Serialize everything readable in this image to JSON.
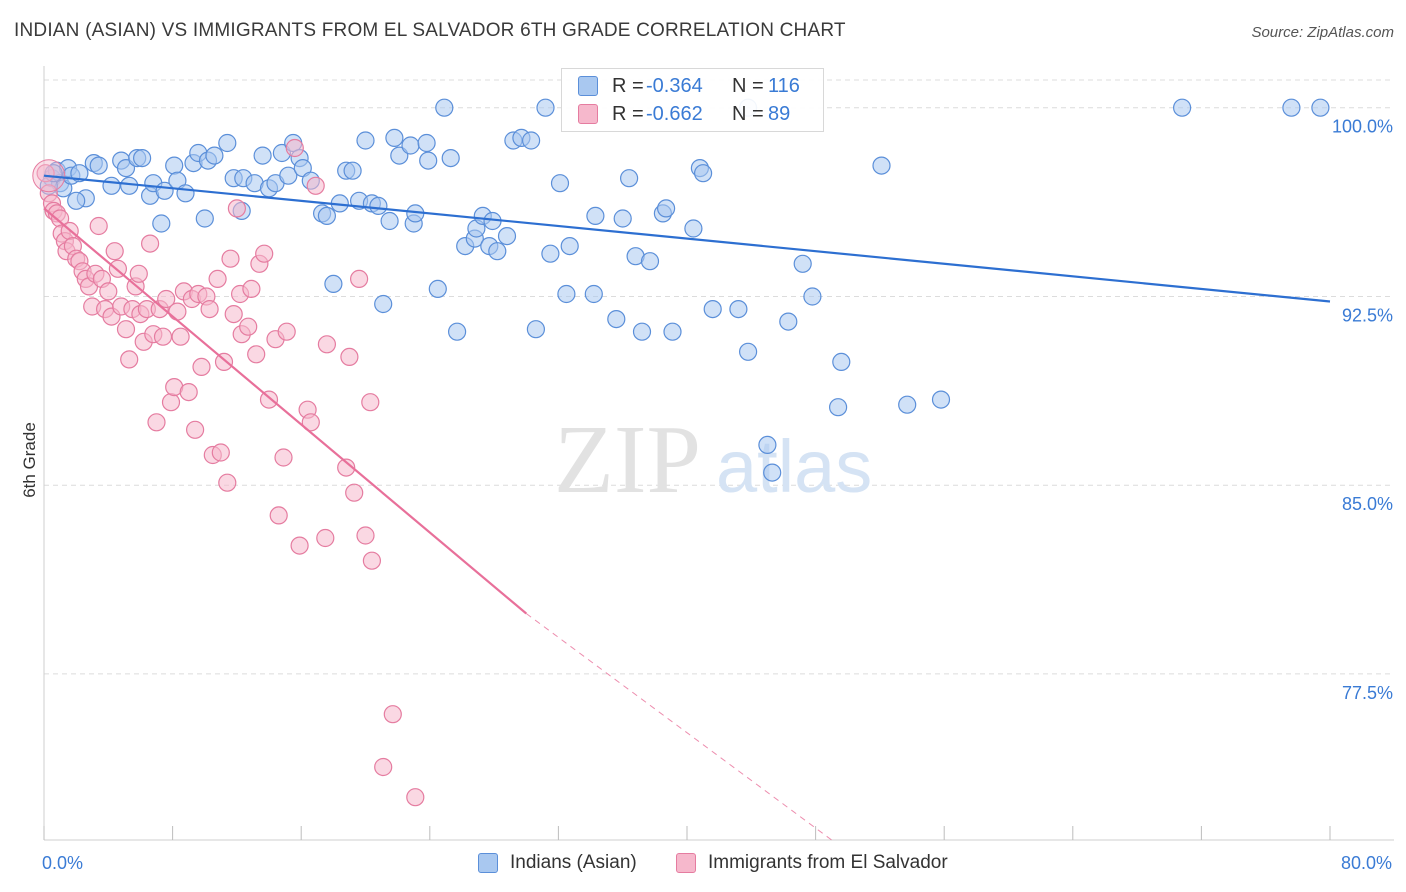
{
  "header": {
    "title": "INDIAN (ASIAN) VS IMMIGRANTS FROM EL SALVADOR 6TH GRADE CORRELATION CHART",
    "source": "Source: ZipAtlas.com"
  },
  "watermark": {
    "zip": "ZIP",
    "atlas": "atlas"
  },
  "legend_top": {
    "rows": [
      {
        "r_label": "R =",
        "r_value": "-0.364",
        "n_label": "N =",
        "n_value": "116"
      },
      {
        "r_label": "R =",
        "r_value": "-0.662",
        "n_label": "N =",
        "n_value": "89"
      }
    ]
  },
  "legend_bottom": {
    "items": [
      "Indians (Asian)",
      "Immigrants from El Salvador"
    ]
  },
  "colors": {
    "blue_fill": "#a9c8f0",
    "blue_stroke": "#5b8fd9",
    "blue_line": "#2d6fd1",
    "pink_fill": "#f6b8cc",
    "pink_stroke": "#e57ca0",
    "pink_line": "#e8709a",
    "grid": "#dcdcdc",
    "tick_label": "#3a7bd5"
  },
  "chart_data": {
    "type": "scatter",
    "title": "INDIAN (ASIAN) VS IMMIGRANTS FROM EL SALVADOR 6TH GRADE CORRELATION CHART",
    "xlabel": "",
    "ylabel": "6th Grade",
    "xlim": [
      0,
      80
    ],
    "ylim": [
      70.9,
      101.5
    ],
    "x_tick_labels": [
      "0.0%",
      "80.0%"
    ],
    "y_ticks": [
      77.5,
      85.0,
      92.5,
      100.0
    ],
    "y_tick_labels": [
      "77.5%",
      "85.0%",
      "92.5%",
      "100.0%"
    ],
    "grid": true,
    "legend_placement": "top-center",
    "series": [
      {
        "name": "Indians (Asian)",
        "color": "#a9c8f0",
        "trend": {
          "x": [
            0,
            80
          ],
          "y": [
            97.3,
            92.3
          ],
          "style": "solid"
        },
        "points": [
          [
            0.5,
            97.2
          ],
          [
            0.8,
            97.5
          ],
          [
            1.0,
            97.0
          ],
          [
            1.2,
            96.8
          ],
          [
            1.5,
            97.6
          ],
          [
            1.7,
            97.3
          ],
          [
            2.2,
            97.4
          ],
          [
            2.6,
            96.4
          ],
          [
            3.1,
            97.8
          ],
          [
            3.4,
            97.7
          ],
          [
            4.2,
            96.9
          ],
          [
            4.8,
            97.9
          ],
          [
            5.1,
            97.6
          ],
          [
            5.3,
            96.9
          ],
          [
            5.8,
            98.0
          ],
          [
            6.1,
            98.0
          ],
          [
            6.6,
            96.5
          ],
          [
            6.8,
            97.0
          ],
          [
            7.3,
            95.4
          ],
          [
            7.5,
            96.7
          ],
          [
            8.1,
            97.7
          ],
          [
            8.3,
            97.1
          ],
          [
            8.8,
            96.6
          ],
          [
            9.3,
            97.8
          ],
          [
            9.6,
            98.2
          ],
          [
            10.0,
            95.6
          ],
          [
            10.2,
            97.9
          ],
          [
            10.6,
            98.1
          ],
          [
            11.4,
            98.6
          ],
          [
            11.8,
            97.2
          ],
          [
            12.3,
            95.9
          ],
          [
            12.4,
            97.2
          ],
          [
            13.1,
            97.0
          ],
          [
            13.6,
            98.1
          ],
          [
            14.0,
            96.8
          ],
          [
            14.4,
            97.0
          ],
          [
            14.8,
            98.2
          ],
          [
            15.2,
            97.3
          ],
          [
            15.5,
            98.6
          ],
          [
            15.9,
            98.0
          ],
          [
            16.1,
            97.6
          ],
          [
            16.6,
            97.1
          ],
          [
            17.3,
            95.8
          ],
          [
            17.6,
            95.7
          ],
          [
            18.0,
            93.0
          ],
          [
            18.4,
            96.2
          ],
          [
            18.8,
            97.5
          ],
          [
            19.2,
            97.5
          ],
          [
            19.6,
            96.3
          ],
          [
            20.0,
            98.7
          ],
          [
            20.4,
            96.2
          ],
          [
            20.8,
            96.1
          ],
          [
            21.1,
            92.2
          ],
          [
            21.5,
            95.5
          ],
          [
            21.8,
            98.8
          ],
          [
            22.1,
            98.1
          ],
          [
            22.8,
            98.5
          ],
          [
            23.0,
            95.4
          ],
          [
            23.1,
            95.8
          ],
          [
            23.8,
            98.6
          ],
          [
            23.9,
            97.9
          ],
          [
            24.5,
            92.8
          ],
          [
            25.3,
            98.0
          ],
          [
            25.7,
            91.1
          ],
          [
            26.2,
            94.5
          ],
          [
            26.8,
            94.8
          ],
          [
            26.9,
            95.2
          ],
          [
            27.3,
            95.7
          ],
          [
            27.7,
            94.5
          ],
          [
            27.9,
            95.5
          ],
          [
            28.2,
            94.3
          ],
          [
            28.8,
            94.9
          ],
          [
            29.2,
            98.7
          ],
          [
            29.7,
            98.8
          ],
          [
            30.3,
            98.7
          ],
          [
            30.6,
            91.2
          ],
          [
            31.2,
            100.0
          ],
          [
            31.5,
            94.2
          ],
          [
            32.1,
            97.0
          ],
          [
            32.5,
            92.6
          ],
          [
            32.7,
            94.5
          ],
          [
            34.2,
            92.6
          ],
          [
            34.3,
            95.7
          ],
          [
            35.6,
            91.6
          ],
          [
            36.0,
            95.6
          ],
          [
            36.4,
            97.2
          ],
          [
            36.8,
            94.1
          ],
          [
            37.2,
            91.1
          ],
          [
            37.7,
            93.9
          ],
          [
            38.5,
            95.8
          ],
          [
            38.7,
            96.0
          ],
          [
            39.1,
            91.1
          ],
          [
            40.4,
            95.2
          ],
          [
            40.8,
            97.6
          ],
          [
            41.0,
            97.4
          ],
          [
            41.6,
            92.0
          ],
          [
            43.2,
            92.0
          ],
          [
            43.8,
            90.3
          ],
          [
            45.0,
            86.6
          ],
          [
            45.3,
            85.5
          ],
          [
            46.3,
            91.5
          ],
          [
            47.2,
            93.8
          ],
          [
            47.8,
            92.5
          ],
          [
            49.4,
            88.1
          ],
          [
            49.6,
            89.9
          ],
          [
            52.1,
            97.7
          ],
          [
            53.7,
            88.2
          ],
          [
            55.8,
            88.4
          ],
          [
            70.8,
            100.0
          ],
          [
            77.6,
            100.0
          ],
          [
            79.4,
            100.0
          ],
          [
            0.3,
            96.9
          ],
          [
            2.0,
            96.3
          ],
          [
            24.9,
            100.0
          ],
          [
            43.8,
            100.0
          ],
          [
            0.6,
            97.4
          ]
        ]
      },
      {
        "name": "Immigrants from El Salvador",
        "color": "#f6b8cc",
        "trend": {
          "x": [
            0,
            30
          ],
          "y": [
            96.0,
            79.9
          ],
          "style": "solid",
          "extended_x": [
            30,
            49.0
          ],
          "extended_y": [
            79.9,
            70.9
          ],
          "extended_style": "dashed"
        },
        "points": [
          [
            0.1,
            97.4
          ],
          [
            0.3,
            96.6
          ],
          [
            0.5,
            96.2
          ],
          [
            0.6,
            95.9
          ],
          [
            0.8,
            95.8
          ],
          [
            1.0,
            95.6
          ],
          [
            1.1,
            95.0
          ],
          [
            1.3,
            94.7
          ],
          [
            1.4,
            94.3
          ],
          [
            1.6,
            95.1
          ],
          [
            1.8,
            94.5
          ],
          [
            2.0,
            94.0
          ],
          [
            2.2,
            93.9
          ],
          [
            2.4,
            93.5
          ],
          [
            2.6,
            93.2
          ],
          [
            2.8,
            92.9
          ],
          [
            3.0,
            92.1
          ],
          [
            3.2,
            93.4
          ],
          [
            3.4,
            95.3
          ],
          [
            3.6,
            93.2
          ],
          [
            3.8,
            92.0
          ],
          [
            4.0,
            92.7
          ],
          [
            4.2,
            91.7
          ],
          [
            4.4,
            94.3
          ],
          [
            4.6,
            93.6
          ],
          [
            4.8,
            92.1
          ],
          [
            5.1,
            91.2
          ],
          [
            5.3,
            90.0
          ],
          [
            5.5,
            92.0
          ],
          [
            5.7,
            92.9
          ],
          [
            5.9,
            93.4
          ],
          [
            6.0,
            91.8
          ],
          [
            6.2,
            90.7
          ],
          [
            6.4,
            92.0
          ],
          [
            6.6,
            94.6
          ],
          [
            6.8,
            91.0
          ],
          [
            7.0,
            87.5
          ],
          [
            7.2,
            92.0
          ],
          [
            7.4,
            90.9
          ],
          [
            7.6,
            92.4
          ],
          [
            7.9,
            88.3
          ],
          [
            8.1,
            88.9
          ],
          [
            8.3,
            91.9
          ],
          [
            8.5,
            90.9
          ],
          [
            8.7,
            92.7
          ],
          [
            9.0,
            88.7
          ],
          [
            9.2,
            92.4
          ],
          [
            9.4,
            87.2
          ],
          [
            9.6,
            92.6
          ],
          [
            9.8,
            89.7
          ],
          [
            10.1,
            92.5
          ],
          [
            10.3,
            92.0
          ],
          [
            10.5,
            86.2
          ],
          [
            10.8,
            93.2
          ],
          [
            11.0,
            86.3
          ],
          [
            11.2,
            89.9
          ],
          [
            11.4,
            85.1
          ],
          [
            11.6,
            94.0
          ],
          [
            11.8,
            91.8
          ],
          [
            12.0,
            96.0
          ],
          [
            12.2,
            92.6
          ],
          [
            12.3,
            91.0
          ],
          [
            12.7,
            91.3
          ],
          [
            12.9,
            92.8
          ],
          [
            13.2,
            90.2
          ],
          [
            13.4,
            93.8
          ],
          [
            13.7,
            94.2
          ],
          [
            14.0,
            88.4
          ],
          [
            14.4,
            90.8
          ],
          [
            14.6,
            83.8
          ],
          [
            14.9,
            86.1
          ],
          [
            15.1,
            91.1
          ],
          [
            15.6,
            98.4
          ],
          [
            15.9,
            82.6
          ],
          [
            16.4,
            88.0
          ],
          [
            16.6,
            87.5
          ],
          [
            16.9,
            96.9
          ],
          [
            17.5,
            82.9
          ],
          [
            17.6,
            90.6
          ],
          [
            18.8,
            85.7
          ],
          [
            19.0,
            90.1
          ],
          [
            19.3,
            84.7
          ],
          [
            19.6,
            93.2
          ],
          [
            20.0,
            83.0
          ],
          [
            20.3,
            88.3
          ],
          [
            20.4,
            82.0
          ],
          [
            21.1,
            73.8
          ],
          [
            21.7,
            75.9
          ],
          [
            23.1,
            72.6
          ]
        ]
      }
    ]
  }
}
